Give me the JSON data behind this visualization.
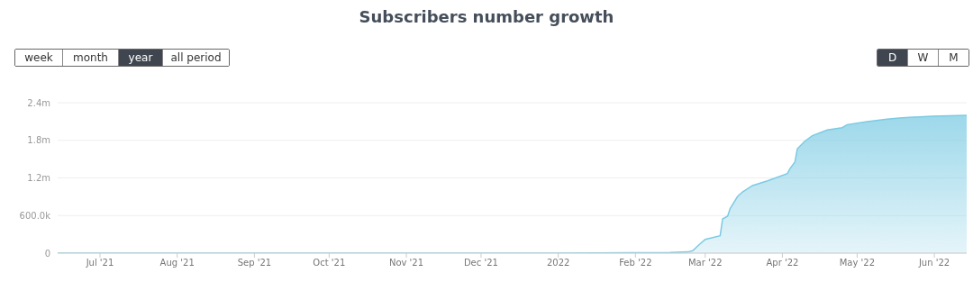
{
  "chart_data": {
    "type": "area",
    "title": "Subscribers number growth",
    "annotations": [
      "week",
      "month",
      "year",
      "all period",
      "D",
      "W",
      "M"
    ],
    "x": [
      "2021-06-14",
      "2021-10-01",
      "2022-01-01",
      "2022-02-15",
      "2022-02-22",
      "2022-02-24",
      "2022-02-26",
      "2022-03-01",
      "2022-03-07",
      "2022-03-08",
      "2022-03-10",
      "2022-03-11",
      "2022-03-14",
      "2022-03-16",
      "2022-03-20",
      "2022-03-26",
      "2022-04-03",
      "2022-04-04",
      "2022-04-06",
      "2022-04-07",
      "2022-04-10",
      "2022-04-13",
      "2022-04-19",
      "2022-04-25",
      "2022-04-27",
      "2022-05-05",
      "2022-05-13",
      "2022-05-19",
      "2022-05-31",
      "2022-06-14"
    ],
    "series": [
      {
        "color": "#7ccbe3",
        "values": [
          0,
          0,
          0,
          10000,
          20000,
          40000,
          115000,
          220000,
          277000,
          546000,
          590000,
          710000,
          905000,
          977000,
          1078000,
          1154000,
          1269000,
          1346000,
          1451000,
          1667000,
          1786000,
          1873000,
          1964000,
          2002000,
          2050000,
          2098000,
          2137000,
          2160000,
          2184000,
          2199000
        ]
      }
    ],
    "xlim": [
      "2021-06-14",
      "2022-06-14"
    ],
    "xticks": [
      {
        "value": "2021-07-01",
        "label": "Jul '21"
      },
      {
        "value": "2021-08-01",
        "label": "Aug '21"
      },
      {
        "value": "2021-09-01",
        "label": "Sep '21"
      },
      {
        "value": "2021-10-01",
        "label": "Oct '21"
      },
      {
        "value": "2021-11-01",
        "label": "Nov '21"
      },
      {
        "value": "2021-12-01",
        "label": "Dec '21"
      },
      {
        "value": "2022-01-01",
        "label": "2022"
      },
      {
        "value": "2022-02-01",
        "label": "Feb '22"
      },
      {
        "value": "2022-03-01",
        "label": "Mar '22"
      },
      {
        "value": "2022-04-01",
        "label": "Apr '22"
      },
      {
        "value": "2022-05-01",
        "label": "May '22"
      },
      {
        "value": "2022-06-01",
        "label": "Jun '22"
      }
    ],
    "ylim": [
      0,
      2400000
    ],
    "yticks": [
      0,
      {
        "value": 600000,
        "label": "600.0k"
      },
      {
        "value": 1200000,
        "label": "1.2m"
      },
      {
        "value": 1800000,
        "label": "1.8m"
      },
      {
        "value": 2400000,
        "label": "2.4m"
      }
    ],
    "grid": "y",
    "legend": false
  }
}
